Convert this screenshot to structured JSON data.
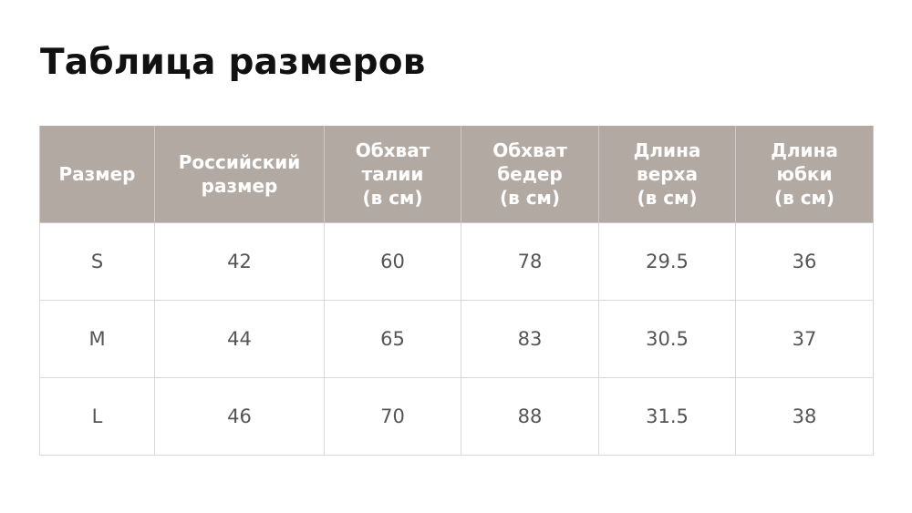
{
  "header": {
    "title": "Таблица размеров"
  },
  "table": {
    "columns": [
      [
        "Размер"
      ],
      [
        "Российский",
        "размер"
      ],
      [
        "Обхват",
        "талии",
        "(в см)"
      ],
      [
        "Обхват",
        "бедер",
        "(в см)"
      ],
      [
        "Длина",
        "верха",
        "(в см)"
      ],
      [
        "Длина",
        "юбки",
        "(в см)"
      ]
    ],
    "rows": [
      [
        "S",
        42,
        60,
        78,
        29.5,
        36
      ],
      [
        "M",
        44,
        65,
        83,
        30.5,
        37
      ],
      [
        "L",
        46,
        70,
        88,
        31.5,
        38
      ]
    ]
  }
}
